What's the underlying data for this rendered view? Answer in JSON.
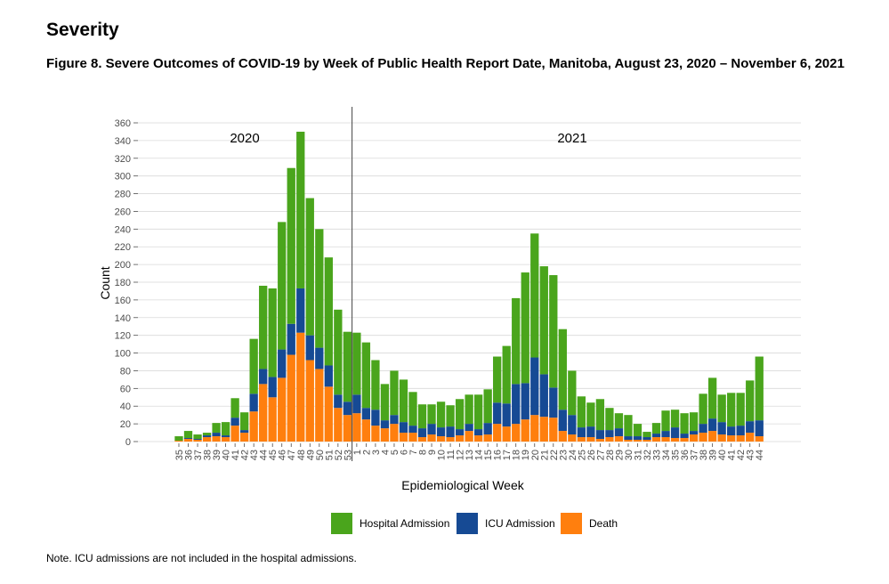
{
  "heading": "Severity",
  "figure_title": "Figure 8. Severe Outcomes of COVID-19 by Week of Public Health Report Date, Manitoba, August 23, 2020 – November 6, 2021",
  "note": "Note. ICU admissions are not included in the hospital admissions.",
  "colors": {
    "hospital": "#4aa51c",
    "icu": "#164a94",
    "death": "#ff7f0e",
    "grid": "#d9d9d9",
    "divider": "#444444"
  },
  "chart_data": {
    "type": "bar",
    "stacked": true,
    "xlabel": "Epidemiological Week",
    "ylabel": "Count",
    "ylim": [
      0,
      360
    ],
    "yticks": [
      0,
      20,
      40,
      60,
      80,
      100,
      120,
      140,
      160,
      180,
      200,
      220,
      240,
      260,
      280,
      300,
      320,
      340,
      360
    ],
    "grid": true,
    "legend_position": "bottom",
    "annotations": [
      {
        "text": "2020",
        "before_category_index": 0
      },
      {
        "text": "2021",
        "before_category_index": 19
      }
    ],
    "year_divider_before_index": 19,
    "categories": [
      "35",
      "36",
      "37",
      "38",
      "39",
      "40",
      "41",
      "42",
      "43",
      "44",
      "45",
      "46",
      "47",
      "48",
      "49",
      "50",
      "51",
      "52",
      "53",
      "1",
      "2",
      "3",
      "4",
      "5",
      "6",
      "7",
      "8",
      "9",
      "10",
      "11",
      "12",
      "13",
      "14",
      "15",
      "16",
      "17",
      "18",
      "19",
      "20",
      "21",
      "22",
      "23",
      "24",
      "25",
      "26",
      "27",
      "28",
      "29",
      "30",
      "31",
      "32",
      "33",
      "34",
      "35",
      "36",
      "37",
      "38",
      "39",
      "40",
      "41",
      "42",
      "43",
      "44"
    ],
    "series": [
      {
        "name": "Death",
        "color": "#ff7f0e",
        "values": [
          1,
          3,
          2,
          5,
          6,
          5,
          18,
          10,
          34,
          65,
          50,
          72,
          98,
          123,
          92,
          82,
          62,
          38,
          30,
          32,
          25,
          18,
          15,
          20,
          10,
          10,
          5,
          8,
          6,
          5,
          7,
          12,
          7,
          8,
          20,
          17,
          20,
          25,
          30,
          28,
          27,
          12,
          8,
          5,
          5,
          3,
          5,
          6,
          2,
          2,
          2,
          5,
          5,
          4,
          4,
          8,
          10,
          12,
          8,
          7,
          7,
          10,
          6
        ]
      },
      {
        "name": "ICU Admission",
        "color": "#164a94",
        "values": [
          0,
          1,
          1,
          2,
          4,
          2,
          9,
          3,
          20,
          17,
          23,
          32,
          35,
          50,
          28,
          24,
          24,
          15,
          15,
          21,
          13,
          18,
          9,
          10,
          12,
          8,
          10,
          12,
          10,
          12,
          7,
          8,
          7,
          13,
          24,
          26,
          45,
          41,
          65,
          48,
          34,
          24,
          22,
          11,
          12,
          10,
          8,
          9,
          4,
          4,
          3,
          4,
          7,
          12,
          5,
          4,
          10,
          14,
          14,
          10,
          11,
          13,
          18
        ]
      },
      {
        "name": "Hospital Admission",
        "color": "#4aa51c",
        "values": [
          5,
          8,
          5,
          3,
          11,
          15,
          22,
          20,
          62,
          94,
          100,
          144,
          176,
          177,
          155,
          134,
          122,
          96,
          79,
          70,
          74,
          56,
          41,
          50,
          48,
          38,
          27,
          22,
          29,
          24,
          34,
          33,
          39,
          38,
          52,
          65,
          97,
          125,
          140,
          122,
          127,
          91,
          50,
          35,
          27,
          35,
          25,
          17,
          24,
          14,
          6,
          12,
          23,
          20,
          23,
          21,
          34,
          46,
          31,
          38,
          37,
          46,
          72
        ]
      }
    ]
  }
}
